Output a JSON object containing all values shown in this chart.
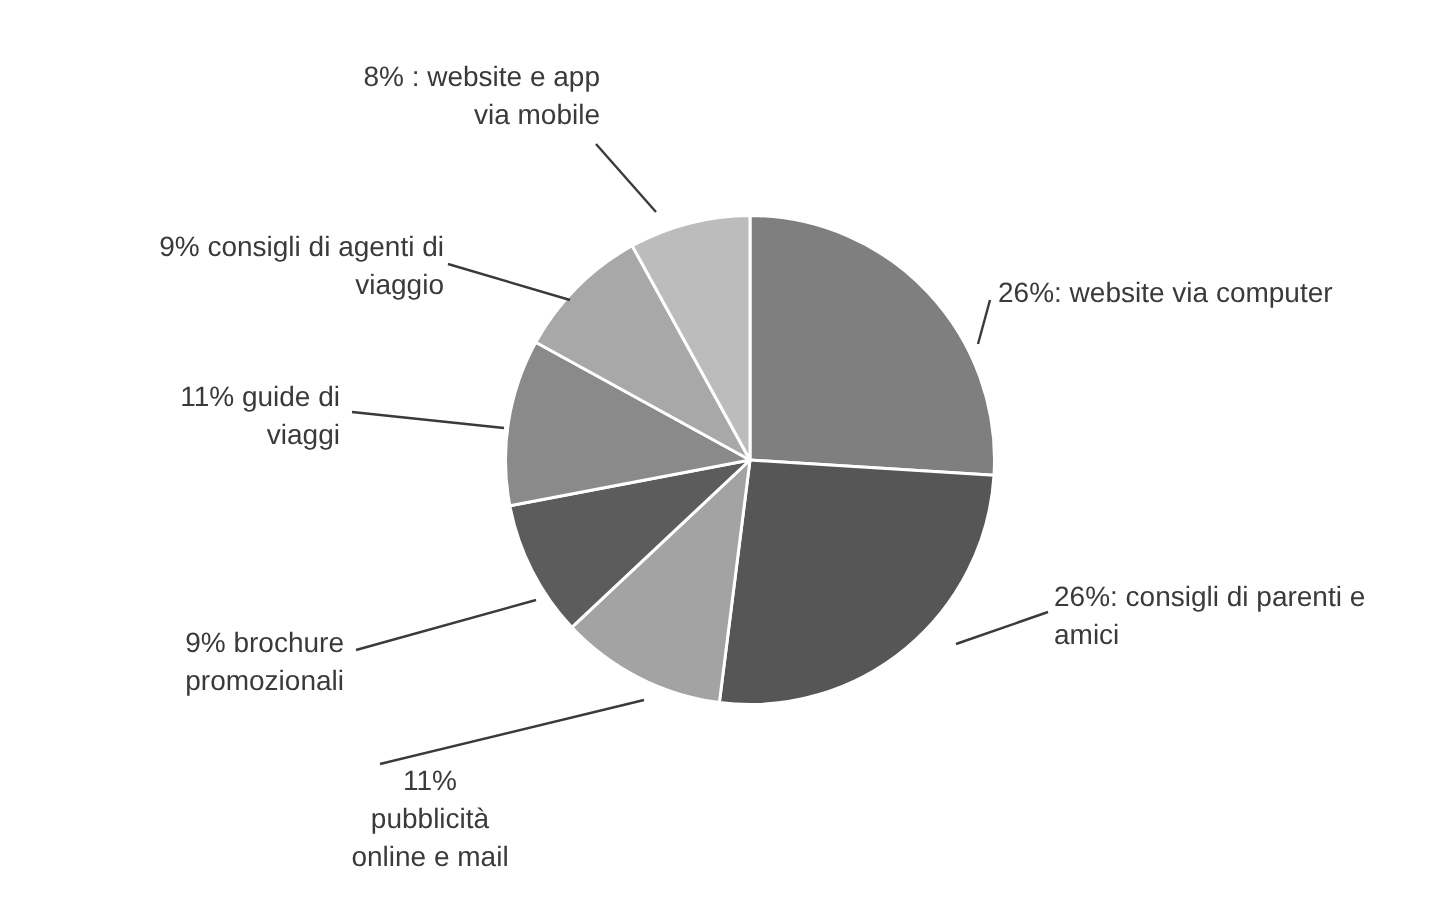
{
  "chart_data": {
    "type": "pie",
    "categories": [
      "26%: website via computer",
      "26%: consigli di parenti e amici",
      "11% pubblicità online e mail",
      "9% brochure promozionali",
      "11% guide di viaggi",
      "9% consigli di agenti di viaggio",
      "8% : website e app via mobile"
    ],
    "values": [
      26,
      26,
      11,
      9,
      11,
      9,
      8
    ],
    "colors": [
      "#7f7f7f",
      "#565656",
      "#a3a3a3",
      "#5c5c5c",
      "#8a8a8a",
      "#a8a8a8",
      "#bcbcbc"
    ],
    "legend": false
  }
}
